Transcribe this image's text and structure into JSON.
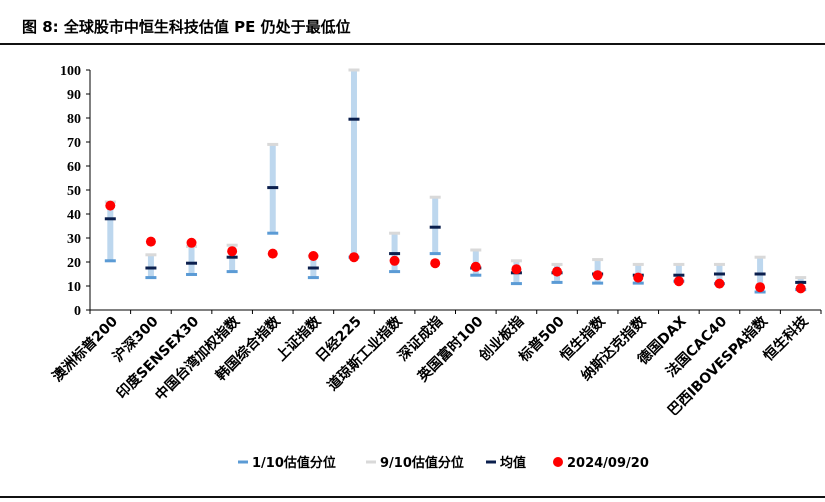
{
  "title": "图 8:  全球股市中恒生科技估值 PE 仍处于最低位",
  "colors": {
    "range_bar": "#bdd7ee",
    "p10": "#5b9bd5",
    "p90": "#d9d9d9",
    "mean": "#0b1f4d",
    "current": "#ff0000",
    "axis": "#000000"
  },
  "chart_data": {
    "type": "range",
    "title": "",
    "xlabel": "",
    "ylabel": "",
    "ylim": [
      0,
      100
    ],
    "yticks": [
      0,
      10,
      20,
      30,
      40,
      50,
      60,
      70,
      80,
      90,
      100
    ],
    "grid": false,
    "legend_position": "bottom",
    "categories": [
      "澳洲标普200",
      "沪深300",
      "印度SENSEX30",
      "中国台湾加权指数",
      "韩国综合指数",
      "上证指数",
      "日经225",
      "道琼斯工业指数",
      "深证成指",
      "英国富时100",
      "创业板指",
      "标普500",
      "恒生指数",
      "纳斯达克指数",
      "德国DAX",
      "法国CAC40",
      "巴西IBOVESPA指数",
      "恒生科技"
    ],
    "series": [
      {
        "name": "1/10估值分位",
        "values": [
          20.5,
          13.5,
          14.8,
          16.0,
          32.0,
          13.5,
          22.0,
          16.0,
          23.5,
          14.5,
          11.0,
          11.5,
          11.2,
          11.2,
          12.0,
          11.0,
          7.5,
          8.5
        ]
      },
      {
        "name": "9/10估值分位",
        "values": [
          45.0,
          23.0,
          26.5,
          27.0,
          69.0,
          22.5,
          100.0,
          32.0,
          47.0,
          25.0,
          20.5,
          19.0,
          21.0,
          19.0,
          19.0,
          19.0,
          22.0,
          13.5
        ]
      },
      {
        "name": "均值",
        "values": [
          38.0,
          17.5,
          19.5,
          22.0,
          51.0,
          17.5,
          79.5,
          23.5,
          34.5,
          17.5,
          15.5,
          15.5,
          15.0,
          14.5,
          14.5,
          15.0,
          15.0,
          11.5
        ]
      },
      {
        "name": "2024/09/20",
        "values": [
          43.5,
          28.5,
          28.0,
          24.5,
          23.5,
          22.5,
          22.0,
          20.5,
          19.5,
          18.0,
          17.0,
          16.0,
          14.5,
          13.5,
          12.0,
          11.0,
          9.5,
          9.0
        ]
      }
    ]
  }
}
